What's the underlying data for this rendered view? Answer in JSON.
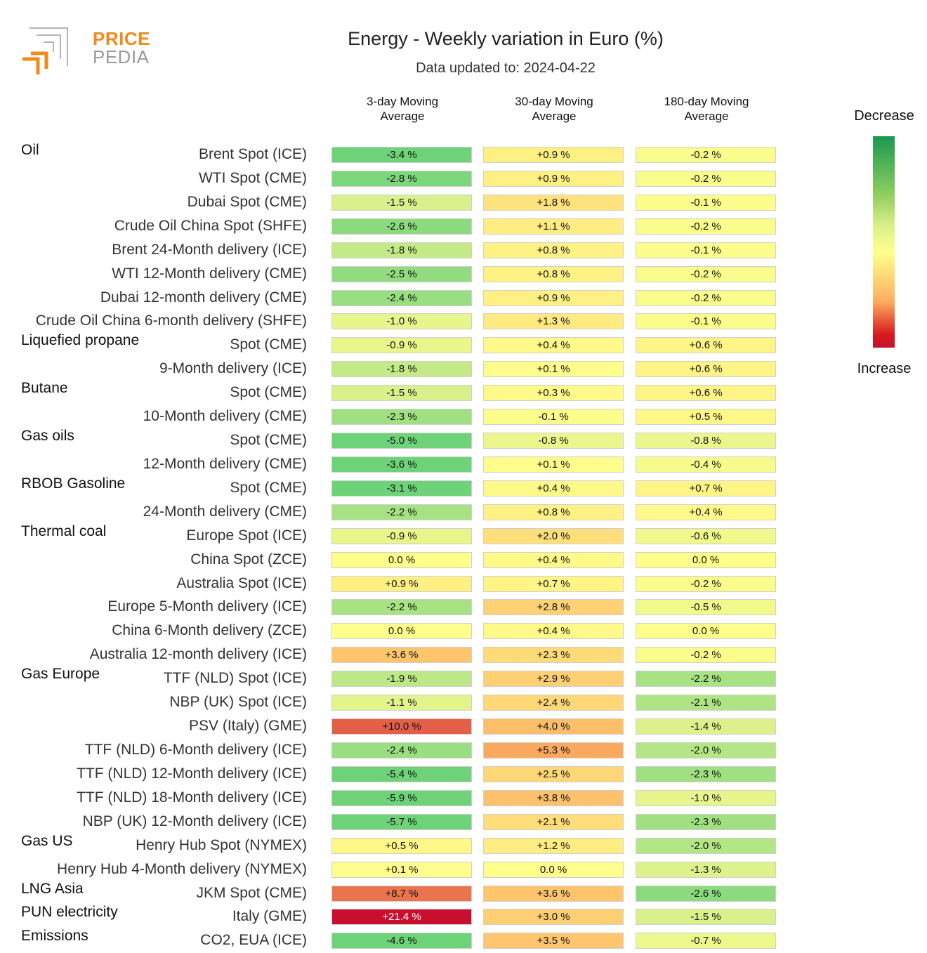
{
  "logo": {
    "line1": "PRICE",
    "line2": "PEDIA"
  },
  "title": "Energy - Weekly variation in Euro (%)",
  "subtitle": "Data updated to: 2024-04-22",
  "legend": {
    "top": "Decrease",
    "bottom": "Increase",
    "colors": {
      "decrease": "#1a9850",
      "neutral": "#ffff8c",
      "increase": "#c8102e"
    }
  },
  "chart_data": {
    "type": "table",
    "columns": [
      [
        "3-day Moving",
        "Average"
      ],
      [
        "30-day Moving",
        "Average"
      ],
      [
        "180-day Moving",
        "Average"
      ]
    ],
    "rows": [
      {
        "group": "Oil",
        "label": "Brent Spot (ICE)",
        "values": [
          -3.4,
          0.9,
          -0.2
        ],
        "text": [
          "-3.4 %",
          "+0.9 %",
          "-0.2 %"
        ]
      },
      {
        "group": "",
        "label": "WTI Spot (CME)",
        "values": [
          -2.8,
          0.9,
          -0.2
        ],
        "text": [
          "-2.8 %",
          "+0.9 %",
          "-0.2 %"
        ]
      },
      {
        "group": "",
        "label": "Dubai Spot (CME)",
        "values": [
          -1.5,
          1.8,
          -0.1
        ],
        "text": [
          "-1.5 %",
          "+1.8 %",
          "-0.1 %"
        ]
      },
      {
        "group": "",
        "label": "Crude Oil China Spot (SHFE)",
        "values": [
          -2.6,
          1.1,
          -0.2
        ],
        "text": [
          "-2.6 %",
          "+1.1 %",
          "-0.2 %"
        ]
      },
      {
        "group": "",
        "label": "Brent 24-Month delivery (ICE)",
        "values": [
          -1.8,
          0.8,
          -0.1
        ],
        "text": [
          "-1.8 %",
          "+0.8 %",
          "-0.1 %"
        ]
      },
      {
        "group": "",
        "label": "WTI 12-Month delivery (CME)",
        "values": [
          -2.5,
          0.8,
          -0.2
        ],
        "text": [
          "-2.5 %",
          "+0.8 %",
          "-0.2 %"
        ]
      },
      {
        "group": "",
        "label": "Dubai 12-month delivery (CME)",
        "values": [
          -2.4,
          0.9,
          -0.2
        ],
        "text": [
          "-2.4 %",
          "+0.9 %",
          "-0.2 %"
        ]
      },
      {
        "group": "",
        "label": "Crude Oil China 6-month delivery (SHFE)",
        "values": [
          -1.0,
          1.3,
          -0.1
        ],
        "text": [
          "-1.0 %",
          "+1.3 %",
          "-0.1 %"
        ]
      },
      {
        "group": "Liquefied propane",
        "label": "Spot (CME)",
        "values": [
          -0.9,
          0.4,
          0.6
        ],
        "text": [
          "-0.9 %",
          "+0.4 %",
          "+0.6 %"
        ]
      },
      {
        "group": "",
        "label": "9-Month delivery (ICE)",
        "values": [
          -1.8,
          0.1,
          0.6
        ],
        "text": [
          "-1.8 %",
          "+0.1 %",
          "+0.6 %"
        ]
      },
      {
        "group": "Butane",
        "label": "Spot (CME)",
        "values": [
          -1.5,
          0.3,
          0.6
        ],
        "text": [
          "-1.5 %",
          "+0.3 %",
          "+0.6 %"
        ]
      },
      {
        "group": "",
        "label": "10-Month delivery (CME)",
        "values": [
          -2.3,
          -0.1,
          0.5
        ],
        "text": [
          "-2.3 %",
          "-0.1 %",
          "+0.5 %"
        ]
      },
      {
        "group": "Gas oils",
        "label": "Spot (CME)",
        "values": [
          -5.0,
          -0.8,
          -0.8
        ],
        "text": [
          "-5.0 %",
          "-0.8 %",
          "-0.8 %"
        ]
      },
      {
        "group": "",
        "label": "12-Month delivery (CME)",
        "values": [
          -3.6,
          0.1,
          -0.4
        ],
        "text": [
          "-3.6 %",
          "+0.1 %",
          "-0.4 %"
        ]
      },
      {
        "group": "RBOB Gasoline",
        "label": "Spot (CME)",
        "values": [
          -3.1,
          0.4,
          0.7
        ],
        "text": [
          "-3.1 %",
          "+0.4 %",
          "+0.7 %"
        ]
      },
      {
        "group": "",
        "label": "24-Month delivery (CME)",
        "values": [
          -2.2,
          0.8,
          0.4
        ],
        "text": [
          "-2.2 %",
          "+0.8 %",
          "+0.4 %"
        ]
      },
      {
        "group": "Thermal coal",
        "label": "Europe Spot (ICE)",
        "values": [
          -0.9,
          2.0,
          -0.6
        ],
        "text": [
          "-0.9 %",
          "+2.0 %",
          "-0.6 %"
        ]
      },
      {
        "group": "",
        "label": "China Spot (ZCE)",
        "values": [
          0.0,
          0.4,
          0.0
        ],
        "text": [
          "0.0 %",
          "+0.4 %",
          "0.0 %"
        ]
      },
      {
        "group": "",
        "label": "Australia Spot (ICE)",
        "values": [
          0.9,
          0.7,
          -0.2
        ],
        "text": [
          "+0.9 %",
          "+0.7 %",
          "-0.2 %"
        ]
      },
      {
        "group": "",
        "label": "Europe 5-Month delivery (ICE)",
        "values": [
          -2.2,
          2.8,
          -0.5
        ],
        "text": [
          "-2.2 %",
          "+2.8 %",
          "-0.5 %"
        ]
      },
      {
        "group": "",
        "label": "China 6-Month delivery (ZCE)",
        "values": [
          0.0,
          0.4,
          0.0
        ],
        "text": [
          "0.0 %",
          "+0.4 %",
          "0.0 %"
        ]
      },
      {
        "group": "",
        "label": "Australia 12-month delivery (ICE)",
        "values": [
          3.6,
          2.3,
          -0.2
        ],
        "text": [
          "+3.6 %",
          "+2.3 %",
          "-0.2 %"
        ]
      },
      {
        "group": "Gas Europe",
        "label": "TTF (NLD) Spot (ICE)",
        "values": [
          -1.9,
          2.9,
          -2.2
        ],
        "text": [
          "-1.9 %",
          "+2.9 %",
          "-2.2 %"
        ]
      },
      {
        "group": "",
        "label": "NBP (UK) Spot (ICE)",
        "values": [
          -1.1,
          2.4,
          -2.1
        ],
        "text": [
          "-1.1 %",
          "+2.4 %",
          "-2.1 %"
        ]
      },
      {
        "group": "",
        "label": "PSV (Italy) (GME)",
        "values": [
          10.0,
          4.0,
          -1.4
        ],
        "text": [
          "+10.0 %",
          "+4.0 %",
          "-1.4 %"
        ]
      },
      {
        "group": "",
        "label": "TTF (NLD) 6-Month delivery (ICE)",
        "values": [
          -2.4,
          5.3,
          -2.0
        ],
        "text": [
          "-2.4 %",
          "+5.3 %",
          "-2.0 %"
        ]
      },
      {
        "group": "",
        "label": "TTF (NLD) 12-Month delivery (ICE)",
        "values": [
          -5.4,
          2.5,
          -2.3
        ],
        "text": [
          "-5.4 %",
          "+2.5 %",
          "-2.3 %"
        ]
      },
      {
        "group": "",
        "label": "TTF (NLD) 18-Month delivery (ICE)",
        "values": [
          -5.9,
          3.8,
          -1.0
        ],
        "text": [
          "-5.9 %",
          "+3.8 %",
          "-1.0 %"
        ]
      },
      {
        "group": "",
        "label": "NBP (UK) 12-Month delivery (ICE)",
        "values": [
          -5.7,
          2.1,
          -2.3
        ],
        "text": [
          "-5.7 %",
          "+2.1 %",
          "-2.3 %"
        ]
      },
      {
        "group": "Gas US",
        "label": "Henry Hub Spot (NYMEX)",
        "values": [
          0.5,
          1.2,
          -2.0
        ],
        "text": [
          "+0.5 %",
          "+1.2 %",
          "-2.0 %"
        ]
      },
      {
        "group": "",
        "label": "Henry Hub 4-Month delivery (NYMEX)",
        "values": [
          0.1,
          0.0,
          -1.3
        ],
        "text": [
          "+0.1 %",
          "0.0 %",
          "-1.3 %"
        ]
      },
      {
        "group": "LNG Asia",
        "label": "JKM Spot (CME)",
        "values": [
          8.7,
          3.6,
          -2.6
        ],
        "text": [
          "+8.7 %",
          "+3.6 %",
          "-2.6 %"
        ]
      },
      {
        "group": "PUN electricity",
        "label": "Italy (GME)",
        "values": [
          21.4,
          3.0,
          -1.5
        ],
        "text": [
          "+21.4 %",
          "+3.0 %",
          "-1.5 %"
        ]
      },
      {
        "group": "Emissions",
        "label": "CO2, EUA (ICE)",
        "values": [
          -4.6,
          3.5,
          -0.7
        ],
        "text": [
          "-4.6 %",
          "+3.5 %",
          "-0.7 %"
        ]
      }
    ]
  }
}
